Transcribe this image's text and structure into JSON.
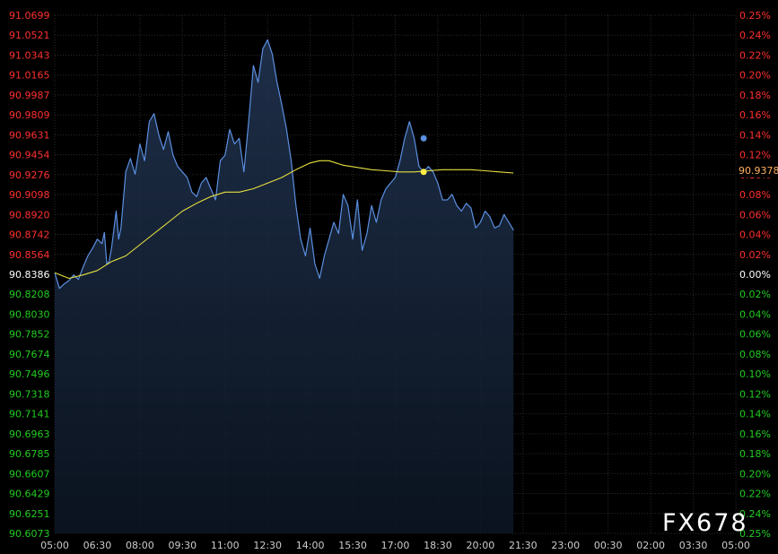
{
  "chart_data": {
    "type": "line",
    "title": "",
    "xlabel": "",
    "ylabel": "",
    "x_ticks": [
      "05:00",
      "06:30",
      "08:00",
      "09:30",
      "11:00",
      "12:30",
      "14:00",
      "15:30",
      "17:00",
      "18:30",
      "20:00",
      "21:30",
      "23:00",
      "00:30",
      "02:00",
      "03:30",
      "05:00"
    ],
    "left_ticks": [
      "91.0699",
      "91.0521",
      "91.0343",
      "91.0165",
      "90.9987",
      "90.9809",
      "90.9631",
      "90.9454",
      "90.9276",
      "90.9098",
      "90.8920",
      "90.8742",
      "90.8564",
      "90.8386",
      "90.8208",
      "90.8030",
      "90.7852",
      "90.7674",
      "90.7496",
      "90.7318",
      "90.7141",
      "90.6963",
      "90.6785",
      "90.6607",
      "90.6429",
      "90.6251",
      "90.6073"
    ],
    "right_ticks": [
      "0.25%",
      "0.24%",
      "0.22%",
      "0.20%",
      "0.18%",
      "0.16%",
      "0.14%",
      "0.12%",
      "0.10%",
      "0.08%",
      "0.06%",
      "0.04%",
      "0.02%",
      "0.00%",
      "0.02%",
      "0.04%",
      "0.06%",
      "0.08%",
      "0.10%",
      "0.12%",
      "0.14%",
      "0.16%",
      "0.18%",
      "0.20%",
      "0.22%",
      "0.24%",
      "0.25%"
    ],
    "ylim": [
      90.6073,
      91.0699
    ],
    "reference_value": 90.8386,
    "x_range_minutes": [
      0,
      1440
    ],
    "current_price_label": "90.9378",
    "series": [
      {
        "type": "line",
        "color": "#5b8fe0",
        "points": [
          [
            0,
            90.84
          ],
          [
            10,
            90.826
          ],
          [
            20,
            90.83
          ],
          [
            30,
            90.833
          ],
          [
            40,
            90.838
          ],
          [
            50,
            90.834
          ],
          [
            60,
            90.845
          ],
          [
            70,
            90.855
          ],
          [
            80,
            90.862
          ],
          [
            90,
            90.87
          ],
          [
            100,
            90.866
          ],
          [
            105,
            90.876
          ],
          [
            110,
            90.848
          ],
          [
            115,
            90.85
          ],
          [
            120,
            90.862
          ],
          [
            130,
            90.895
          ],
          [
            135,
            90.87
          ],
          [
            140,
            90.88
          ],
          [
            150,
            90.93
          ],
          [
            160,
            90.942
          ],
          [
            170,
            90.928
          ],
          [
            180,
            90.955
          ],
          [
            190,
            90.94
          ],
          [
            200,
            90.975
          ],
          [
            210,
            90.982
          ],
          [
            220,
            90.963
          ],
          [
            230,
            90.95
          ],
          [
            240,
            90.966
          ],
          [
            250,
            90.945
          ],
          [
            260,
            90.935
          ],
          [
            270,
            90.93
          ],
          [
            280,
            90.925
          ],
          [
            290,
            90.912
          ],
          [
            300,
            90.908
          ],
          [
            310,
            90.92
          ],
          [
            320,
            90.925
          ],
          [
            330,
            90.915
          ],
          [
            340,
            90.905
          ],
          [
            350,
            90.94
          ],
          [
            360,
            90.945
          ],
          [
            370,
            90.968
          ],
          [
            380,
            90.955
          ],
          [
            390,
            90.96
          ],
          [
            400,
            90.93
          ],
          [
            410,
            90.975
          ],
          [
            420,
            91.025
          ],
          [
            430,
            91.01
          ],
          [
            440,
            91.04
          ],
          [
            450,
            91.048
          ],
          [
            460,
            91.035
          ],
          [
            470,
            91.01
          ],
          [
            480,
            90.99
          ],
          [
            490,
            90.968
          ],
          [
            500,
            90.94
          ],
          [
            510,
            90.9
          ],
          [
            520,
            90.87
          ],
          [
            530,
            90.855
          ],
          [
            540,
            90.88
          ],
          [
            550,
            90.848
          ],
          [
            560,
            90.835
          ],
          [
            570,
            90.855
          ],
          [
            580,
            90.87
          ],
          [
            590,
            90.885
          ],
          [
            600,
            90.875
          ],
          [
            610,
            90.91
          ],
          [
            620,
            90.9
          ],
          [
            630,
            90.87
          ],
          [
            640,
            90.905
          ],
          [
            650,
            90.86
          ],
          [
            660,
            90.875
          ],
          [
            670,
            90.9
          ],
          [
            680,
            90.885
          ],
          [
            690,
            90.905
          ],
          [
            700,
            90.915
          ],
          [
            710,
            90.92
          ],
          [
            720,
            90.925
          ],
          [
            730,
            90.94
          ],
          [
            740,
            90.96
          ],
          [
            750,
            90.975
          ],
          [
            760,
            90.96
          ],
          [
            770,
            90.935
          ],
          [
            780,
            90.93
          ],
          [
            790,
            90.935
          ],
          [
            800,
            90.93
          ],
          [
            810,
            90.92
          ],
          [
            820,
            90.905
          ],
          [
            830,
            90.905
          ],
          [
            840,
            90.91
          ],
          [
            850,
            90.9
          ],
          [
            860,
            90.895
          ],
          [
            870,
            90.902
          ],
          [
            880,
            90.898
          ],
          [
            890,
            90.88
          ],
          [
            900,
            90.885
          ],
          [
            910,
            90.895
          ],
          [
            920,
            90.89
          ],
          [
            930,
            90.88
          ],
          [
            940,
            90.882
          ],
          [
            950,
            90.892
          ],
          [
            960,
            90.885
          ],
          [
            970,
            90.878
          ]
        ]
      },
      {
        "type": "line",
        "color": "#e8e040",
        "points": [
          [
            0,
            90.84
          ],
          [
            30,
            90.835
          ],
          [
            60,
            90.838
          ],
          [
            90,
            90.842
          ],
          [
            120,
            90.85
          ],
          [
            150,
            90.855
          ],
          [
            180,
            90.865
          ],
          [
            210,
            90.875
          ],
          [
            240,
            90.885
          ],
          [
            270,
            90.895
          ],
          [
            300,
            90.902
          ],
          [
            330,
            90.908
          ],
          [
            360,
            90.912
          ],
          [
            390,
            90.912
          ],
          [
            420,
            90.915
          ],
          [
            450,
            90.92
          ],
          [
            480,
            90.925
          ],
          [
            510,
            90.932
          ],
          [
            540,
            90.938
          ],
          [
            560,
            90.94
          ],
          [
            580,
            90.94
          ],
          [
            610,
            90.936
          ],
          [
            640,
            90.934
          ],
          [
            670,
            90.932
          ],
          [
            700,
            90.931
          ],
          [
            730,
            90.93
          ],
          [
            760,
            90.93
          ],
          [
            790,
            90.931
          ],
          [
            820,
            90.932
          ],
          [
            850,
            90.932
          ],
          [
            880,
            90.932
          ],
          [
            910,
            90.931
          ],
          [
            940,
            90.93
          ],
          [
            970,
            90.929
          ]
        ]
      }
    ],
    "markers": [
      {
        "x": 780,
        "y": 90.96,
        "color": "#5b8fe0"
      },
      {
        "x": 780,
        "y": 90.93,
        "color": "#ffee44"
      }
    ]
  },
  "watermark": "FX678",
  "colors": {
    "up": "#ff3030",
    "down": "#22cc22",
    "neutral": "#ffffff",
    "axis_time": "#cccccc",
    "grid": "#2a2a2a",
    "current_price": "#ffb060"
  }
}
